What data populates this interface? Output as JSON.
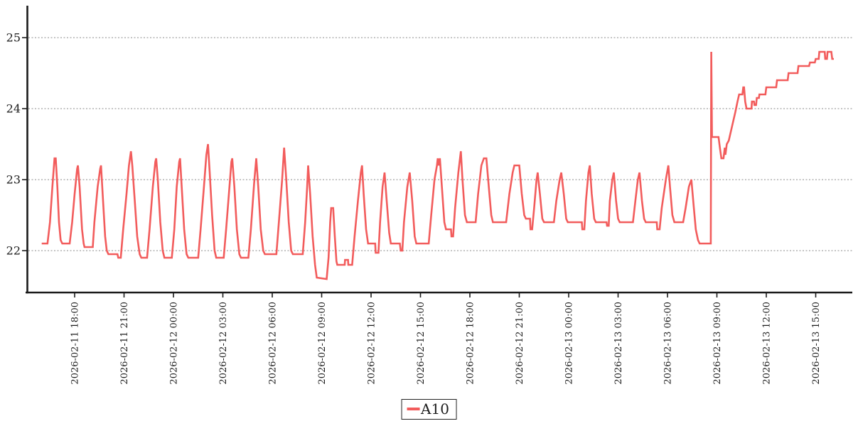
{
  "legend": {
    "label": "A10"
  },
  "colors": {
    "line": "#f25c5c",
    "axis": "#1a1a1a",
    "grid": "#8a8a8a",
    "text": "#1c1c1c",
    "background": "#ffffff"
  },
  "chart_data": {
    "type": "line",
    "title": "",
    "xlabel": "",
    "ylabel": "",
    "grid": "horizontal dotted",
    "legend_position": "bottom-center",
    "x_unit": "hours since 2026-02-11 16:00",
    "x_range_hours": [
      0,
      48.1
    ],
    "ylim": [
      21.45,
      25.45
    ],
    "y_ticks": [
      22,
      23,
      24,
      25
    ],
    "x_ticks": [
      {
        "t": 2,
        "label": "2026-02-11 18:00"
      },
      {
        "t": 5,
        "label": "2026-02-11 21:00"
      },
      {
        "t": 8,
        "label": "2026-02-12 00:00"
      },
      {
        "t": 11,
        "label": "2026-02-12 03:00"
      },
      {
        "t": 14,
        "label": "2026-02-12 06:00"
      },
      {
        "t": 17,
        "label": "2026-02-12 09:00"
      },
      {
        "t": 20,
        "label": "2026-02-12 12:00"
      },
      {
        "t": 23,
        "label": "2026-02-12 15:00"
      },
      {
        "t": 26,
        "label": "2026-02-12 18:00"
      },
      {
        "t": 29,
        "label": "2026-02-12 21:00"
      },
      {
        "t": 32,
        "label": "2026-02-13 00:00"
      },
      {
        "t": 35,
        "label": "2026-02-13 03:00"
      },
      {
        "t": 38,
        "label": "2026-02-13 06:00"
      },
      {
        "t": 41,
        "label": "2026-02-13 09:00"
      },
      {
        "t": 44,
        "label": "2026-02-13 12:00"
      },
      {
        "t": 47,
        "label": "2026-02-13 15:00"
      }
    ],
    "series": [
      {
        "name": "A10",
        "color": "#f25c5c",
        "points": [
          [
            0,
            22.1
          ],
          [
            0.35,
            22.1
          ],
          [
            0.5,
            22.4
          ],
          [
            0.65,
            22.9
          ],
          [
            0.78,
            23.3
          ],
          [
            0.85,
            23.3
          ],
          [
            0.95,
            22.9
          ],
          [
            1.05,
            22.4
          ],
          [
            1.15,
            22.15
          ],
          [
            1.25,
            22.1
          ],
          [
            1.7,
            22.1
          ],
          [
            1.85,
            22.4
          ],
          [
            2.0,
            22.8
          ],
          [
            2.15,
            23.15
          ],
          [
            2.2,
            23.2
          ],
          [
            2.3,
            22.9
          ],
          [
            2.45,
            22.3
          ],
          [
            2.55,
            22.1
          ],
          [
            2.6,
            22.05
          ],
          [
            3.1,
            22.05
          ],
          [
            3.2,
            22.4
          ],
          [
            3.4,
            22.9
          ],
          [
            3.55,
            23.15
          ],
          [
            3.6,
            23.2
          ],
          [
            3.7,
            22.8
          ],
          [
            3.85,
            22.2
          ],
          [
            3.95,
            22.0
          ],
          [
            4.05,
            21.95
          ],
          [
            4.6,
            21.95
          ],
          [
            4.65,
            21.9
          ],
          [
            4.8,
            21.9
          ],
          [
            4.95,
            22.3
          ],
          [
            5.15,
            22.8
          ],
          [
            5.3,
            23.2
          ],
          [
            5.42,
            23.4
          ],
          [
            5.5,
            23.2
          ],
          [
            5.65,
            22.7
          ],
          [
            5.8,
            22.2
          ],
          [
            5.95,
            21.95
          ],
          [
            6.05,
            21.9
          ],
          [
            6.4,
            21.9
          ],
          [
            6.55,
            22.3
          ],
          [
            6.75,
            22.9
          ],
          [
            6.9,
            23.25
          ],
          [
            6.95,
            23.3
          ],
          [
            7.05,
            23.0
          ],
          [
            7.2,
            22.4
          ],
          [
            7.35,
            22.0
          ],
          [
            7.45,
            21.9
          ],
          [
            7.9,
            21.9
          ],
          [
            8.05,
            22.3
          ],
          [
            8.2,
            22.9
          ],
          [
            8.35,
            23.25
          ],
          [
            8.4,
            23.3
          ],
          [
            8.5,
            22.9
          ],
          [
            8.65,
            22.3
          ],
          [
            8.8,
            21.95
          ],
          [
            8.9,
            21.9
          ],
          [
            9.5,
            21.9
          ],
          [
            9.65,
            22.3
          ],
          [
            9.85,
            22.9
          ],
          [
            10.0,
            23.35
          ],
          [
            10.1,
            23.5
          ],
          [
            10.2,
            23.1
          ],
          [
            10.35,
            22.5
          ],
          [
            10.5,
            22.0
          ],
          [
            10.6,
            21.9
          ],
          [
            11.05,
            21.9
          ],
          [
            11.2,
            22.3
          ],
          [
            11.4,
            22.9
          ],
          [
            11.52,
            23.25
          ],
          [
            11.57,
            23.3
          ],
          [
            11.7,
            22.9
          ],
          [
            11.85,
            22.3
          ],
          [
            12.0,
            21.95
          ],
          [
            12.1,
            21.9
          ],
          [
            12.55,
            21.9
          ],
          [
            12.7,
            22.3
          ],
          [
            12.9,
            22.95
          ],
          [
            13.03,
            23.3
          ],
          [
            13.15,
            22.9
          ],
          [
            13.3,
            22.3
          ],
          [
            13.45,
            22.0
          ],
          [
            13.55,
            21.95
          ],
          [
            14.25,
            21.95
          ],
          [
            14.4,
            22.4
          ],
          [
            14.6,
            23.0
          ],
          [
            14.72,
            23.45
          ],
          [
            14.85,
            23.0
          ],
          [
            15.0,
            22.4
          ],
          [
            15.15,
            22.0
          ],
          [
            15.25,
            21.95
          ],
          [
            15.85,
            21.95
          ],
          [
            16.0,
            22.4
          ],
          [
            16.12,
            22.9
          ],
          [
            16.18,
            23.2
          ],
          [
            16.3,
            22.8
          ],
          [
            16.45,
            22.2
          ],
          [
            16.6,
            21.8
          ],
          [
            16.7,
            21.62
          ],
          [
            17.3,
            21.6
          ],
          [
            17.42,
            21.9
          ],
          [
            17.52,
            22.4
          ],
          [
            17.58,
            22.6
          ],
          [
            17.7,
            22.6
          ],
          [
            17.8,
            22.2
          ],
          [
            17.9,
            21.85
          ],
          [
            17.95,
            21.8
          ],
          [
            18.4,
            21.8
          ],
          [
            18.42,
            21.87
          ],
          [
            18.6,
            21.87
          ],
          [
            18.62,
            21.8
          ],
          [
            18.85,
            21.8
          ],
          [
            19.0,
            22.2
          ],
          [
            19.2,
            22.7
          ],
          [
            19.38,
            23.1
          ],
          [
            19.45,
            23.2
          ],
          [
            19.55,
            22.8
          ],
          [
            19.7,
            22.3
          ],
          [
            19.82,
            22.1
          ],
          [
            20.25,
            22.1
          ],
          [
            20.28,
            21.97
          ],
          [
            20.45,
            21.97
          ],
          [
            20.55,
            22.4
          ],
          [
            20.7,
            22.9
          ],
          [
            20.82,
            23.1
          ],
          [
            20.95,
            22.7
          ],
          [
            21.1,
            22.25
          ],
          [
            21.2,
            22.1
          ],
          [
            21.75,
            22.1
          ],
          [
            21.8,
            22.0
          ],
          [
            21.9,
            22.0
          ],
          [
            22.0,
            22.4
          ],
          [
            22.2,
            22.9
          ],
          [
            22.35,
            23.1
          ],
          [
            22.5,
            22.7
          ],
          [
            22.65,
            22.2
          ],
          [
            22.75,
            22.1
          ],
          [
            23.5,
            22.1
          ],
          [
            23.65,
            22.5
          ],
          [
            23.85,
            23.0
          ],
          [
            24.0,
            23.2
          ],
          [
            24.05,
            23.3
          ],
          [
            24.1,
            23.2
          ],
          [
            24.18,
            23.3
          ],
          [
            24.3,
            22.9
          ],
          [
            24.45,
            22.4
          ],
          [
            24.55,
            22.3
          ],
          [
            24.85,
            22.3
          ],
          [
            24.88,
            22.2
          ],
          [
            24.98,
            22.2
          ],
          [
            25.1,
            22.6
          ],
          [
            25.3,
            23.1
          ],
          [
            25.45,
            23.4
          ],
          [
            25.55,
            23.0
          ],
          [
            25.7,
            22.5
          ],
          [
            25.82,
            22.4
          ],
          [
            26.35,
            22.4
          ],
          [
            26.5,
            22.8
          ],
          [
            26.7,
            23.2
          ],
          [
            26.85,
            23.3
          ],
          [
            27.0,
            23.3
          ],
          [
            27.15,
            22.9
          ],
          [
            27.3,
            22.5
          ],
          [
            27.4,
            22.4
          ],
          [
            28.2,
            22.4
          ],
          [
            28.4,
            22.8
          ],
          [
            28.6,
            23.1
          ],
          [
            28.7,
            23.2
          ],
          [
            29.0,
            23.2
          ],
          [
            29.15,
            22.8
          ],
          [
            29.3,
            22.5
          ],
          [
            29.4,
            22.45
          ],
          [
            29.65,
            22.45
          ],
          [
            29.68,
            22.3
          ],
          [
            29.78,
            22.3
          ],
          [
            29.9,
            22.6
          ],
          [
            30.05,
            23.0
          ],
          [
            30.12,
            23.1
          ],
          [
            30.25,
            22.8
          ],
          [
            30.4,
            22.45
          ],
          [
            30.5,
            22.4
          ],
          [
            31.1,
            22.4
          ],
          [
            31.25,
            22.7
          ],
          [
            31.45,
            23.0
          ],
          [
            31.55,
            23.1
          ],
          [
            31.7,
            22.8
          ],
          [
            31.85,
            22.45
          ],
          [
            31.95,
            22.4
          ],
          [
            32.8,
            22.4
          ],
          [
            32.83,
            22.3
          ],
          [
            32.95,
            22.3
          ],
          [
            33.05,
            22.7
          ],
          [
            33.2,
            23.1
          ],
          [
            33.28,
            23.2
          ],
          [
            33.4,
            22.8
          ],
          [
            33.55,
            22.45
          ],
          [
            33.65,
            22.4
          ],
          [
            34.3,
            22.4
          ],
          [
            34.33,
            22.35
          ],
          [
            34.43,
            22.35
          ],
          [
            34.5,
            22.7
          ],
          [
            34.65,
            23.0
          ],
          [
            34.74,
            23.1
          ],
          [
            34.88,
            22.7
          ],
          [
            35.0,
            22.45
          ],
          [
            35.1,
            22.4
          ],
          [
            35.9,
            22.4
          ],
          [
            36.05,
            22.7
          ],
          [
            36.2,
            23.0
          ],
          [
            36.3,
            23.1
          ],
          [
            36.45,
            22.7
          ],
          [
            36.58,
            22.45
          ],
          [
            36.68,
            22.4
          ],
          [
            37.35,
            22.4
          ],
          [
            37.38,
            22.3
          ],
          [
            37.52,
            22.3
          ],
          [
            37.65,
            22.6
          ],
          [
            37.9,
            23.0
          ],
          [
            38.05,
            23.2
          ],
          [
            38.15,
            22.9
          ],
          [
            38.3,
            22.5
          ],
          [
            38.42,
            22.4
          ],
          [
            38.95,
            22.4
          ],
          [
            39.1,
            22.6
          ],
          [
            39.3,
            22.9
          ],
          [
            39.45,
            23.0
          ],
          [
            39.6,
            22.6
          ],
          [
            39.72,
            22.3
          ],
          [
            39.85,
            22.15
          ],
          [
            39.95,
            22.1
          ],
          [
            40.63,
            22.1
          ],
          [
            40.66,
            24.8
          ],
          [
            40.7,
            23.6
          ],
          [
            41.1,
            23.6
          ],
          [
            41.18,
            23.45
          ],
          [
            41.27,
            23.3
          ],
          [
            41.4,
            23.3
          ],
          [
            41.48,
            23.45
          ],
          [
            41.52,
            23.35
          ],
          [
            41.6,
            23.5
          ],
          [
            41.72,
            23.55
          ],
          [
            41.82,
            23.65
          ],
          [
            41.92,
            23.75
          ],
          [
            42.02,
            23.85
          ],
          [
            42.12,
            23.95
          ],
          [
            42.25,
            24.1
          ],
          [
            42.35,
            24.2
          ],
          [
            42.55,
            24.2
          ],
          [
            42.6,
            24.3
          ],
          [
            42.65,
            24.3
          ],
          [
            42.72,
            24.1
          ],
          [
            42.8,
            24.0
          ],
          [
            43.1,
            24.0
          ],
          [
            43.13,
            24.1
          ],
          [
            43.25,
            24.1
          ],
          [
            43.28,
            24.05
          ],
          [
            43.38,
            24.05
          ],
          [
            43.42,
            24.15
          ],
          [
            43.55,
            24.15
          ],
          [
            43.58,
            24.2
          ],
          [
            43.95,
            24.2
          ],
          [
            44.0,
            24.3
          ],
          [
            44.6,
            24.3
          ],
          [
            44.65,
            24.4
          ],
          [
            45.3,
            24.4
          ],
          [
            45.35,
            24.5
          ],
          [
            45.9,
            24.5
          ],
          [
            45.95,
            24.6
          ],
          [
            46.6,
            24.6
          ],
          [
            46.65,
            24.65
          ],
          [
            46.95,
            24.65
          ],
          [
            47.0,
            24.7
          ],
          [
            47.18,
            24.7
          ],
          [
            47.22,
            24.8
          ],
          [
            47.55,
            24.8
          ],
          [
            47.58,
            24.7
          ],
          [
            47.68,
            24.7
          ],
          [
            47.72,
            24.8
          ],
          [
            47.95,
            24.8
          ],
          [
            48.0,
            24.7
          ],
          [
            48.1,
            24.7
          ]
        ]
      }
    ]
  }
}
